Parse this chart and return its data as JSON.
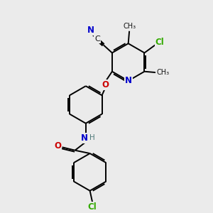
{
  "bg_color": "#ebebeb",
  "atom_colors": {
    "C": "#000000",
    "N": "#0000cc",
    "O": "#cc0000",
    "Cl": "#33aa00",
    "H": "#507a7a"
  },
  "bond_color": "#000000",
  "bond_width": 1.4,
  "fig_width": 3.0,
  "fig_height": 3.0,
  "dpi": 100
}
